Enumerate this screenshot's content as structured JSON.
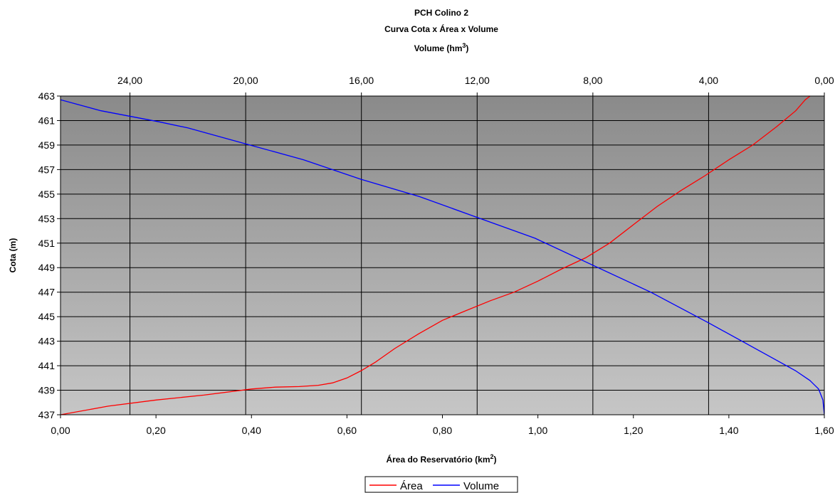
{
  "chart_data": {
    "type": "line",
    "title": "PCH Colino 2",
    "subtitle": "Curva Cota x Área x Volume",
    "top_axis": {
      "label": "Volume (hm",
      "label_sup": "3",
      "label_end": ")",
      "range": [
        26.4,
        0
      ],
      "ticks": [
        "24,00",
        "20,00",
        "16,00",
        "12,00",
        "8,00",
        "4,00",
        "0,00"
      ],
      "tick_values": [
        24,
        20,
        16,
        12,
        8,
        4,
        0
      ]
    },
    "x_axis": {
      "label": "Área do Reservatório (km",
      "label_sup": "2",
      "label_end": ")",
      "range": [
        0,
        1.6
      ],
      "ticks": [
        "0,00",
        "0,20",
        "0,40",
        "0,60",
        "0,80",
        "1,00",
        "1,20",
        "1,40",
        "1,60"
      ],
      "tick_values": [
        0,
        0.2,
        0.4,
        0.6,
        0.8,
        1.0,
        1.2,
        1.4,
        1.6
      ]
    },
    "y_axis": {
      "label": "Cota (m)",
      "range": [
        437,
        463
      ],
      "ticks": [
        "463",
        "461",
        "459",
        "457",
        "455",
        "453",
        "451",
        "449",
        "447",
        "445",
        "443",
        "441",
        "439",
        "437"
      ],
      "tick_values": [
        463,
        461,
        459,
        457,
        455,
        453,
        451,
        449,
        447,
        445,
        443,
        441,
        439,
        437
      ]
    },
    "grid": true,
    "legend_position": "bottom-center",
    "series": [
      {
        "name": "Área",
        "axis": "area",
        "color": "#ff0000",
        "points": [
          [
            0.0,
            437.0
          ],
          [
            0.1,
            437.7
          ],
          [
            0.2,
            438.2
          ],
          [
            0.3,
            438.6
          ],
          [
            0.4,
            439.1
          ],
          [
            0.45,
            439.25
          ],
          [
            0.5,
            439.3
          ],
          [
            0.54,
            439.4
          ],
          [
            0.57,
            439.6
          ],
          [
            0.6,
            440.0
          ],
          [
            0.63,
            440.6
          ],
          [
            0.66,
            441.3
          ],
          [
            0.7,
            442.4
          ],
          [
            0.75,
            443.6
          ],
          [
            0.8,
            444.7
          ],
          [
            0.85,
            445.5
          ],
          [
            0.9,
            446.3
          ],
          [
            0.95,
            447.0
          ],
          [
            1.0,
            447.9
          ],
          [
            1.05,
            448.9
          ],
          [
            1.1,
            449.8
          ],
          [
            1.15,
            451.0
          ],
          [
            1.2,
            452.5
          ],
          [
            1.25,
            454.0
          ],
          [
            1.3,
            455.3
          ],
          [
            1.35,
            456.5
          ],
          [
            1.4,
            457.8
          ],
          [
            1.45,
            459.0
          ],
          [
            1.5,
            460.5
          ],
          [
            1.54,
            461.8
          ],
          [
            1.56,
            462.7
          ],
          [
            1.57,
            463.0
          ]
        ]
      },
      {
        "name": "Volume",
        "axis": "volume",
        "color": "#0000ff",
        "points": [
          [
            26.4,
            462.7
          ],
          [
            25.0,
            461.8
          ],
          [
            23.0,
            460.9
          ],
          [
            22.0,
            460.4
          ],
          [
            20.0,
            459.1
          ],
          [
            18.0,
            457.8
          ],
          [
            16.0,
            456.2
          ],
          [
            14.0,
            454.8
          ],
          [
            12.0,
            453.1
          ],
          [
            10.0,
            451.4
          ],
          [
            8.0,
            449.2
          ],
          [
            6.0,
            447.0
          ],
          [
            4.0,
            444.5
          ],
          [
            2.0,
            441.9
          ],
          [
            1.0,
            440.6
          ],
          [
            0.5,
            439.8
          ],
          [
            0.2,
            439.1
          ],
          [
            0.05,
            438.2
          ],
          [
            0.0,
            437.0
          ]
        ]
      }
    ]
  }
}
